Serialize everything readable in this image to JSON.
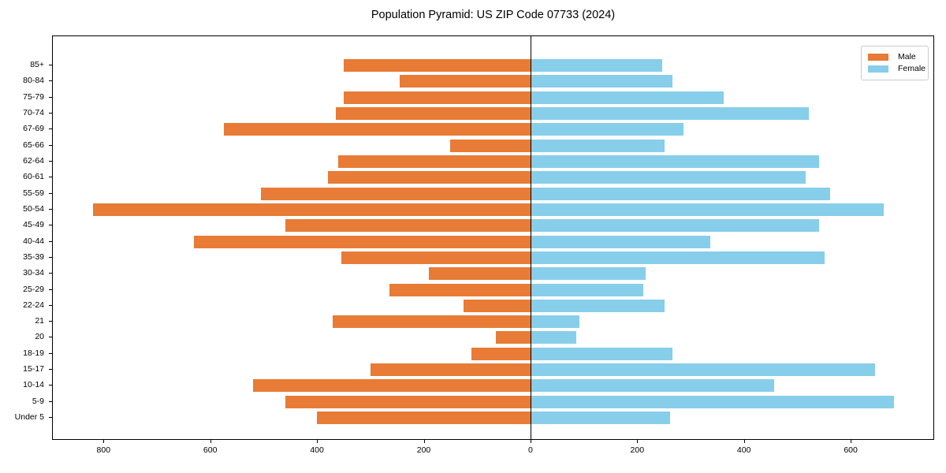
{
  "title": "Population Pyramid: US ZIP Code 07733 (2024)",
  "legend": {
    "male_label": "Male",
    "female_label": "Female"
  },
  "colors": {
    "male": "#e87b35",
    "female": "#87ceeb",
    "axis": "#000000",
    "legend_border": "#cccccc"
  },
  "chart_data": {
    "type": "bar",
    "subtype": "population-pyramid-horizontal",
    "title": "Population Pyramid: US ZIP Code 07733 (2024)",
    "categories_top_to_bottom": [
      "85+",
      "80-84",
      "75-79",
      "70-74",
      "67-69",
      "65-66",
      "62-64",
      "60-61",
      "55-59",
      "50-54",
      "45-49",
      "40-44",
      "35-39",
      "30-34",
      "25-29",
      "22-24",
      "21",
      "20",
      "18-19",
      "15-17",
      "10-14",
      "5-9",
      "Under 5"
    ],
    "series": [
      {
        "name": "Male",
        "side": "left",
        "color": "#e87b35",
        "values": [
          350,
          245,
          350,
          365,
          575,
          150,
          360,
          380,
          505,
          820,
          460,
          630,
          355,
          190,
          265,
          125,
          370,
          65,
          110,
          300,
          520,
          460,
          400
        ]
      },
      {
        "name": "Female",
        "side": "right",
        "color": "#87ceeb",
        "values": [
          245,
          265,
          360,
          520,
          285,
          250,
          540,
          515,
          560,
          660,
          540,
          335,
          550,
          215,
          210,
          250,
          90,
          85,
          265,
          645,
          455,
          680,
          260
        ]
      }
    ],
    "xlabel": "",
    "ylabel": "",
    "xtick_labels": [
      "800",
      "600",
      "400",
      "200",
      "0",
      "200",
      "400",
      "600"
    ],
    "xtick_values": [
      -800,
      -600,
      -400,
      -200,
      0,
      200,
      400,
      600
    ],
    "xlim": [
      -895,
      755
    ],
    "grid": false,
    "legend_position": "upper right",
    "zero_axis_line": true
  }
}
